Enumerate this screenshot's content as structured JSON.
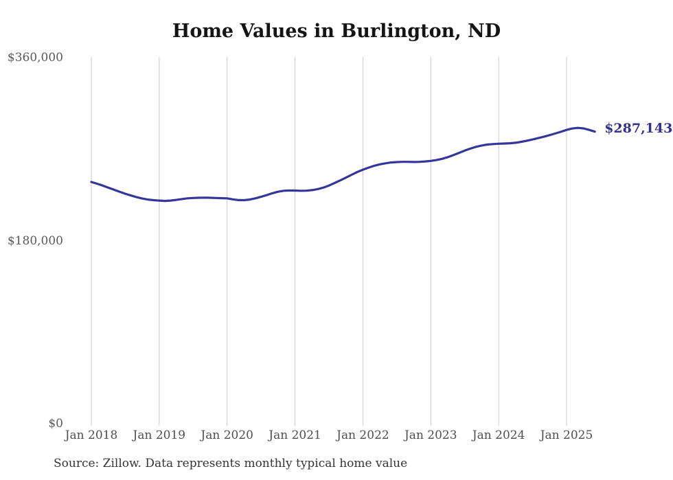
{
  "chart": {
    "title": "Home Values in Burlington, ND",
    "source": "Source: Zillow. Data represents monthly typical home value"
  },
  "chart_data": {
    "type": "line",
    "title": "Home Values in Burlington, ND",
    "source": "Source: Zillow. Data represents monthly typical home value",
    "x_start": "2018-01",
    "x_end": "2025-06",
    "x_frequency": "monthly",
    "xtick_labels": [
      "Jan 2018",
      "Jan 2019",
      "Jan 2020",
      "Jan 2021",
      "Jan 2022",
      "Jan 2023",
      "Jan 2024",
      "Jan 2025"
    ],
    "xtick_indices": [
      0,
      12,
      24,
      36,
      48,
      60,
      72,
      84
    ],
    "ytick_labels": [
      "$360,000",
      "$180,000",
      "$0"
    ],
    "ytick_values": [
      360000,
      180000,
      0
    ],
    "ylim": [
      0,
      360000
    ],
    "grid": "vertical-only",
    "legend": "none",
    "last_value": 287143,
    "last_value_label": "$287,143",
    "colors": {
      "line": "#35359a",
      "end_label": "#32318f",
      "gridline": "#cbcbcb",
      "title": "#141414",
      "ticks": "#595959",
      "source": "#353535",
      "background": "#ffffff"
    },
    "series": [
      {
        "name": "Typical home value",
        "values": [
          238000,
          236300,
          234500,
          232500,
          230500,
          228500,
          226500,
          224800,
          223200,
          221800,
          220800,
          220200,
          219800,
          219500,
          219800,
          220500,
          221300,
          222000,
          222400,
          222600,
          222700,
          222600,
          222400,
          222200,
          222000,
          221000,
          220300,
          220200,
          220800,
          222000,
          223500,
          225200,
          227000,
          228500,
          229400,
          229700,
          229600,
          229400,
          229500,
          230000,
          231000,
          232500,
          234500,
          237000,
          239500,
          242200,
          245000,
          247700,
          250000,
          252000,
          253800,
          255200,
          256200,
          257000,
          257400,
          257600,
          257600,
          257500,
          257600,
          258000,
          258600,
          259400,
          260600,
          262200,
          264200,
          266400,
          268600,
          270600,
          272300,
          273600,
          274500,
          275000,
          275300,
          275500,
          275800,
          276300,
          277200,
          278300,
          279500,
          280800,
          282200,
          283700,
          285300,
          287000,
          288800,
          290200,
          290800,
          290300,
          288800,
          287143
        ]
      }
    ]
  }
}
